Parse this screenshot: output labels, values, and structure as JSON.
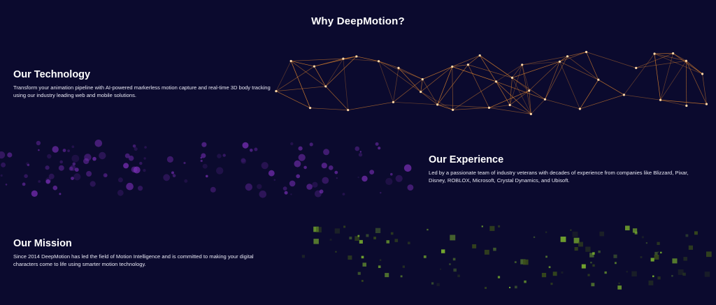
{
  "page": {
    "title": "Why DeepMotion?"
  },
  "sections": [
    {
      "id": "technology",
      "title": "Our Technology",
      "body": "Transform your animation pipeline with AI-powered markerless motion capture and real-time 3D body tracking using our industry leading web and mobile solutions."
    },
    {
      "id": "experience",
      "title": "Our Experience",
      "body": "Led by a passionate team of industry veterans with decades of experience from companies like Blizzard, Pixar, Disney, ROBLOX, Microsoft, Crystal Dynamics, and Ubisoft."
    },
    {
      "id": "mission",
      "title": "Our Mission",
      "body": "Since 2014 DeepMotion has led the field of Motion Intelligence and is committed to making your digital characters come to life using smarter motion technology."
    }
  ],
  "colors": {
    "background": "#0b0a2e",
    "network": "#e88a2e",
    "bubbles": "#7a2fb8",
    "squares": "#7fb82e"
  },
  "decorations": {
    "network_graphic": "orange-node-network",
    "bubble_graphic": "purple-particle-field",
    "square_graphic": "green-square-particle-field"
  }
}
